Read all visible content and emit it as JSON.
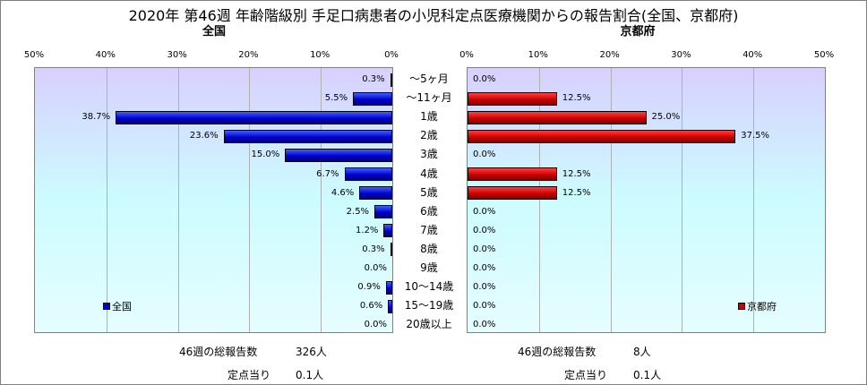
{
  "title": "2020年 第46週 年齢階級別 手足口病患者の小児科定点医療機関からの報告割合(全国、京都府)",
  "chart_data": [
    {
      "type": "bar",
      "title": "全国",
      "orientation": "horizontal-reversed",
      "categories": [
        "～5ヶ月",
        "～11ヶ月",
        "1歳",
        "2歳",
        "3歳",
        "4歳",
        "5歳",
        "6歳",
        "7歳",
        "8歳",
        "9歳",
        "10～14歳",
        "15～19歳",
        "20歳以上"
      ],
      "series": [
        {
          "name": "全国",
          "color": "#0000cc",
          "values": [
            0.3,
            5.5,
            38.7,
            23.6,
            15.0,
            6.7,
            4.6,
            2.5,
            1.2,
            0.3,
            0.0,
            0.9,
            0.6,
            0.0
          ],
          "labels": [
            "0.3%",
            "5.5%",
            "38.7%",
            "23.6%",
            "15.0%",
            "6.7%",
            "4.6%",
            "2.5%",
            "1.2%",
            "0.3%",
            "0.0%",
            "0.9%",
            "0.6%",
            "0.0%"
          ]
        }
      ],
      "xlim": [
        0,
        50
      ],
      "ticks": [
        "50%",
        "40%",
        "30%",
        "20%",
        "10%",
        "0%"
      ],
      "legend_position": "bottom-left",
      "grid": true
    },
    {
      "type": "bar",
      "title": "京都府",
      "orientation": "horizontal",
      "categories": [
        "～5ヶ月",
        "～11ヶ月",
        "1歳",
        "2歳",
        "3歳",
        "4歳",
        "5歳",
        "6歳",
        "7歳",
        "8歳",
        "9歳",
        "10～14歳",
        "15～19歳",
        "20歳以上"
      ],
      "series": [
        {
          "name": "京都府",
          "color": "#cc0000",
          "values": [
            0.0,
            12.5,
            25.0,
            37.5,
            0.0,
            12.5,
            12.5,
            0.0,
            0.0,
            0.0,
            0.0,
            0.0,
            0.0,
            0.0
          ],
          "labels": [
            "0.0%",
            "12.5%",
            "25.0%",
            "37.5%",
            "0.0%",
            "12.5%",
            "12.5%",
            "0.0%",
            "0.0%",
            "0.0%",
            "0.0%",
            "0.0%",
            "0.0%",
            "0.0%"
          ]
        }
      ],
      "xlim": [
        0,
        50
      ],
      "ticks": [
        "0%",
        "10%",
        "20%",
        "30%",
        "40%",
        "50%"
      ],
      "legend_position": "bottom-right",
      "grid": true
    }
  ],
  "footer": {
    "national": {
      "total_label": "46週の総報告数",
      "total_value": "326人",
      "per_label": "定点当り",
      "per_value": "0.1人"
    },
    "kyoto": {
      "total_label": "46週の総報告数",
      "total_value": "8人",
      "per_label": "定点当り",
      "per_value": "0.1人"
    }
  }
}
